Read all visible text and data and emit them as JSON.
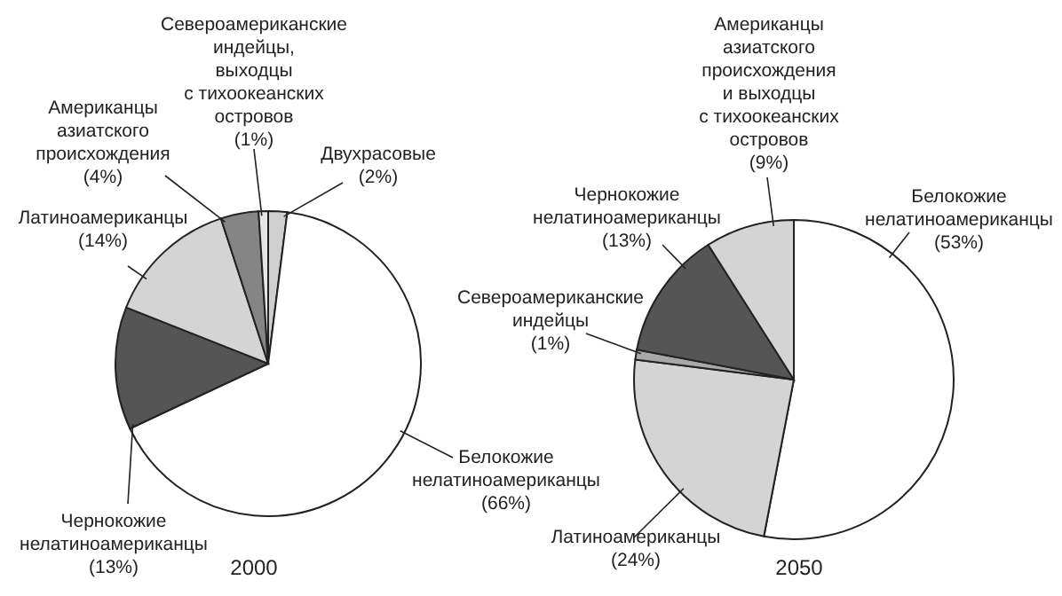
{
  "chart_data": [
    {
      "type": "pie",
      "title": "2000",
      "categories": [
        "Двухрасовые",
        "Белокожие нелатиноамериканцы",
        "Чернокожие нелатиноамериканцы",
        "Латиноамериканцы",
        "Американцы азиатского происхождения",
        "Североамериканские индейцы, выходцы с тихоокеанских островов"
      ],
      "values": [
        2,
        66,
        13,
        14,
        4,
        1
      ],
      "value_labels": [
        "(2%)",
        "(66%)",
        "(13%)",
        "(14%)",
        "(4%)",
        "(1%)"
      ],
      "colors": [
        "#cfcfcf",
        "#ffffff",
        "#555555",
        "#d4d4d4",
        "#858585",
        "#e6e6e6"
      ]
    },
    {
      "type": "pie",
      "title": "2050",
      "categories": [
        "Белокожие нелатиноамериканцы",
        "Латиноамериканцы",
        "Североамериканские индейцы",
        "Чернокожие нелатиноамериканцы",
        "Американцы азиатского происхождения и выходцы с тихоокеанских островов"
      ],
      "values": [
        53,
        24,
        1,
        13,
        9
      ],
      "value_labels": [
        "(53%)",
        "(24%)",
        "(1%)",
        "(13%)",
        "(9%)"
      ],
      "colors": [
        "#ffffff",
        "#d4d4d4",
        "#a8a8a8",
        "#555555",
        "#d4d4d4"
      ]
    }
  ]
}
